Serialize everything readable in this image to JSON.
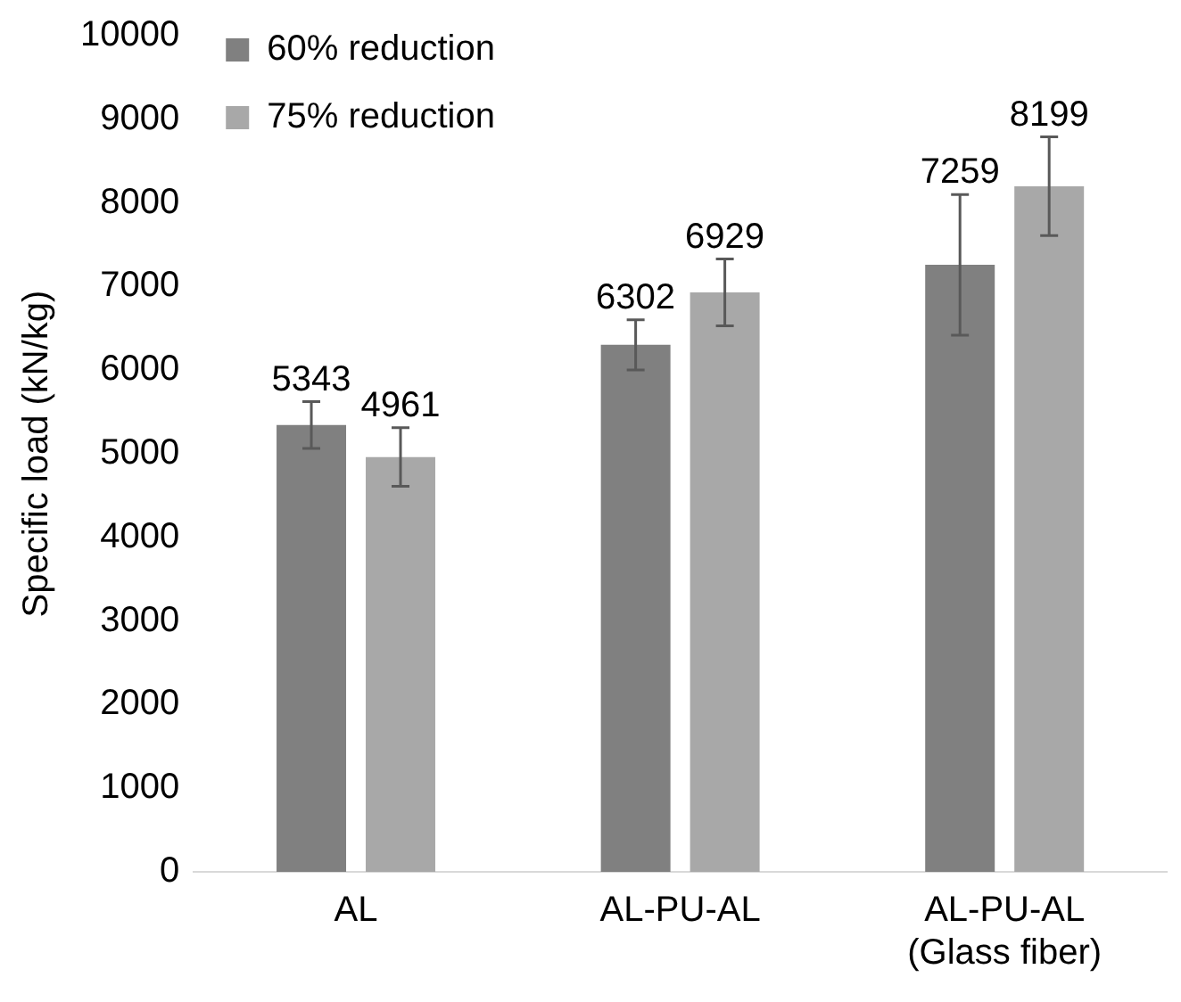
{
  "chart_data": {
    "type": "bar",
    "ylabel": "Specific load (kN/kg)",
    "categories": [
      "AL",
      "AL-PU-AL",
      "AL-PU-AL\n(Glass fiber)"
    ],
    "series": [
      {
        "name": "60% reduction",
        "color": "#808080",
        "values": [
          5343,
          6302,
          7259
        ],
        "errors": [
          280,
          300,
          840
        ]
      },
      {
        "name": "75% reduction",
        "color": "#a8a8a8",
        "values": [
          4961,
          6929,
          8199
        ],
        "errors": [
          350,
          400,
          590
        ]
      }
    ],
    "ylim": [
      0,
      10000
    ],
    "yticks": [
      0,
      1000,
      2000,
      3000,
      4000,
      5000,
      6000,
      7000,
      8000,
      9000,
      10000
    ],
    "grid": false,
    "legend": "top left",
    "data_labels": true
  }
}
